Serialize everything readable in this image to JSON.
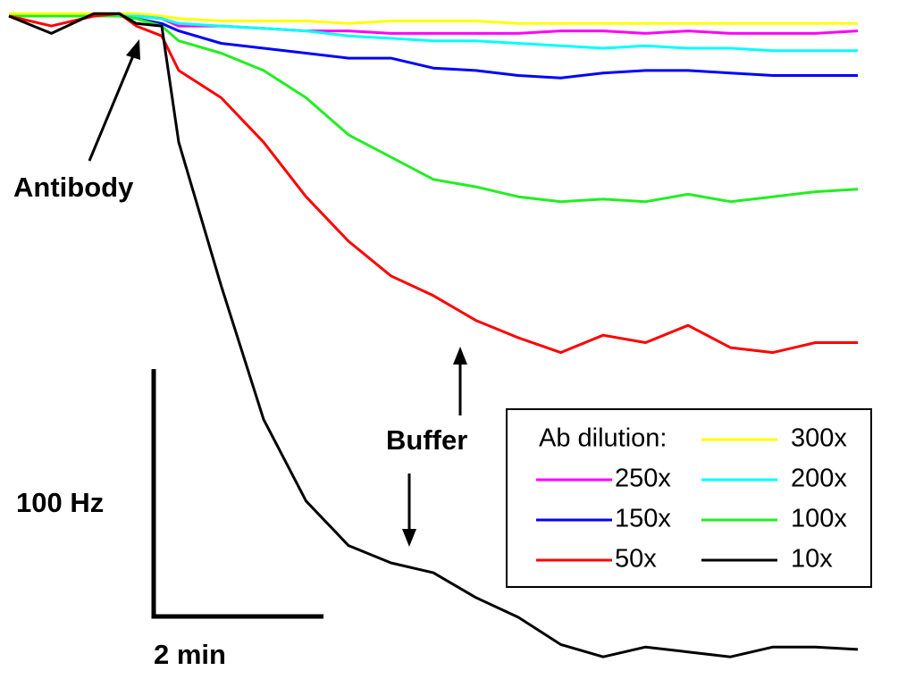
{
  "chart_data": {
    "type": "line",
    "annotations": [
      "Antibody",
      "Buffer"
    ],
    "legend_title": "Ab dilution:",
    "legend": "bottom right",
    "scale_bars": {
      "y": {
        "value": 100,
        "label": "100 Hz"
      },
      "x": {
        "value": 2,
        "label": "2 min"
      }
    },
    "xlim": [
      0,
      10
    ],
    "ylim": [
      -260,
      0
    ],
    "x": [
      0,
      0.5,
      1,
      1.3,
      1.5,
      1.8,
      2,
      2.5,
      3,
      3.5,
      4,
      4.5,
      5,
      5.5,
      6,
      6.5,
      7,
      7.5,
      8,
      8.5,
      9,
      9.5,
      10
    ],
    "series": [
      {
        "name": "300x",
        "color": "#ffff00",
        "values": [
          1,
          1,
          1,
          1,
          1,
          0,
          -1,
          -2,
          -2,
          -2,
          -3,
          -2,
          -2,
          -2,
          -3,
          -3,
          -3,
          -3,
          -3,
          -3,
          -3,
          -3,
          -3
        ]
      },
      {
        "name": "250x",
        "color": "#ff00ff",
        "values": [
          0,
          0,
          0,
          0,
          0,
          -1,
          -4,
          -4,
          -5,
          -6,
          -6,
          -7,
          -7,
          -7,
          -7,
          -6,
          -6,
          -7,
          -6,
          -7,
          -7,
          -7,
          -6
        ]
      },
      {
        "name": "200x",
        "color": "#00ffff",
        "values": [
          0,
          0,
          0,
          0,
          0,
          -1,
          -3,
          -4,
          -5,
          -6,
          -8,
          -9,
          -10,
          -10,
          -11,
          -12,
          -13,
          -12,
          -13,
          -13,
          -14,
          -14,
          -14
        ]
      },
      {
        "name": "150x",
        "color": "#0000ff",
        "values": [
          0,
          0,
          0,
          0,
          -1,
          -3,
          -6,
          -11,
          -13,
          -15,
          -17,
          -17,
          -21,
          -22,
          -24,
          -25,
          -23,
          -22,
          -22,
          -23,
          -24,
          -24,
          -24
        ]
      },
      {
        "name": "100x",
        "color": "#22ee22",
        "values": [
          0,
          0,
          0,
          0,
          -1,
          -4,
          -10,
          -15,
          -22,
          -33,
          -48,
          -57,
          -66,
          -69,
          -73,
          -75,
          -74,
          -75,
          -72,
          -75,
          -73,
          -71,
          -70
        ]
      },
      {
        "name": "50x",
        "color": "#ff0000",
        "values": [
          0,
          -4,
          0,
          1,
          -4,
          -8,
          -22,
          -33,
          -51,
          -73,
          -91,
          -105,
          -113,
          -123,
          -130,
          -136,
          -129,
          -132,
          -125,
          -134,
          -136,
          -132,
          -132
        ]
      },
      {
        "name": "10x",
        "color": "#000000",
        "values": [
          0,
          -7,
          1,
          1,
          -3,
          -4,
          -51,
          -109,
          -163,
          -196,
          -214,
          -221,
          -225,
          -235,
          -243,
          -254,
          -259,
          -255,
          -257,
          -259,
          -255,
          -255,
          -256
        ]
      }
    ]
  }
}
